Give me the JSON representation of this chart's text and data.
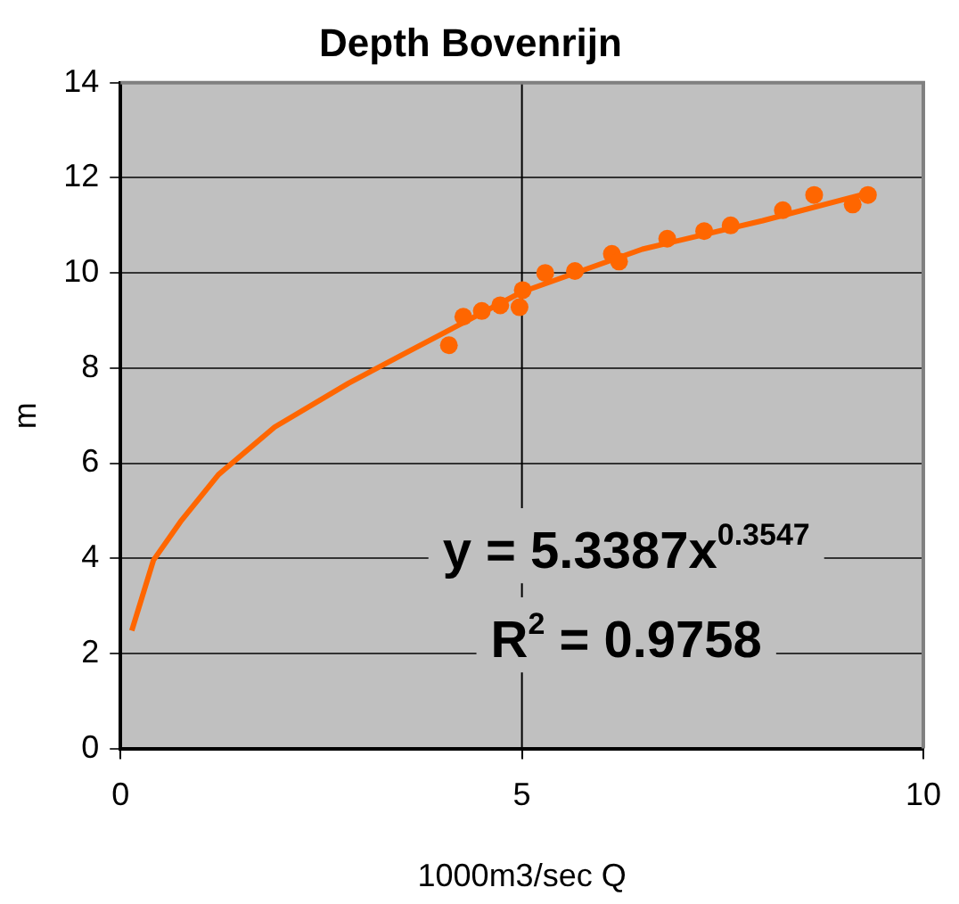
{
  "chart_data": {
    "type": "scatter",
    "title": "Depth Bovenrijn",
    "xlabel": "1000m3/sec Q",
    "ylabel": "m",
    "xlim": [
      0,
      10
    ],
    "xticks": [
      0,
      5,
      10
    ],
    "ylim": [
      0,
      14
    ],
    "yticks": [
      0,
      2,
      4,
      6,
      8,
      10,
      12,
      14
    ],
    "grid": "y",
    "ref_lines": [
      {
        "axis": "x",
        "value": 5,
        "color": "#000000"
      }
    ],
    "legend": false,
    "marker": "circle",
    "series": [
      {
        "color": "#ff6600",
        "x": [
          4.09,
          4.27,
          4.5,
          4.73,
          4.97,
          5.01,
          5.29,
          5.66,
          6.12,
          6.21,
          6.81,
          7.27,
          7.6,
          8.25,
          8.64,
          9.12,
          9.31
        ],
        "values": [
          8.48,
          9.08,
          9.2,
          9.32,
          9.28,
          9.64,
          10.0,
          10.04,
          10.4,
          10.24,
          10.72,
          10.88,
          11.0,
          11.32,
          11.64,
          11.44,
          11.64
        ]
      },
      {
        "type": "line",
        "color": "#ff6600",
        "marker": "none",
        "x": [
          0.14,
          0.41,
          0.76,
          1.22,
          1.92,
          2.84,
          3.6,
          5.0,
          6.5,
          8.0,
          9.31
        ],
        "values": [
          2.48,
          3.96,
          4.8,
          5.76,
          6.76,
          7.68,
          8.36,
          9.6,
          10.5,
          11.1,
          11.68
        ]
      }
    ],
    "annotations": [
      "y = 5.3387x$^{0.3547}$",
      "R$^{2}$ = 0.9758"
    ]
  }
}
